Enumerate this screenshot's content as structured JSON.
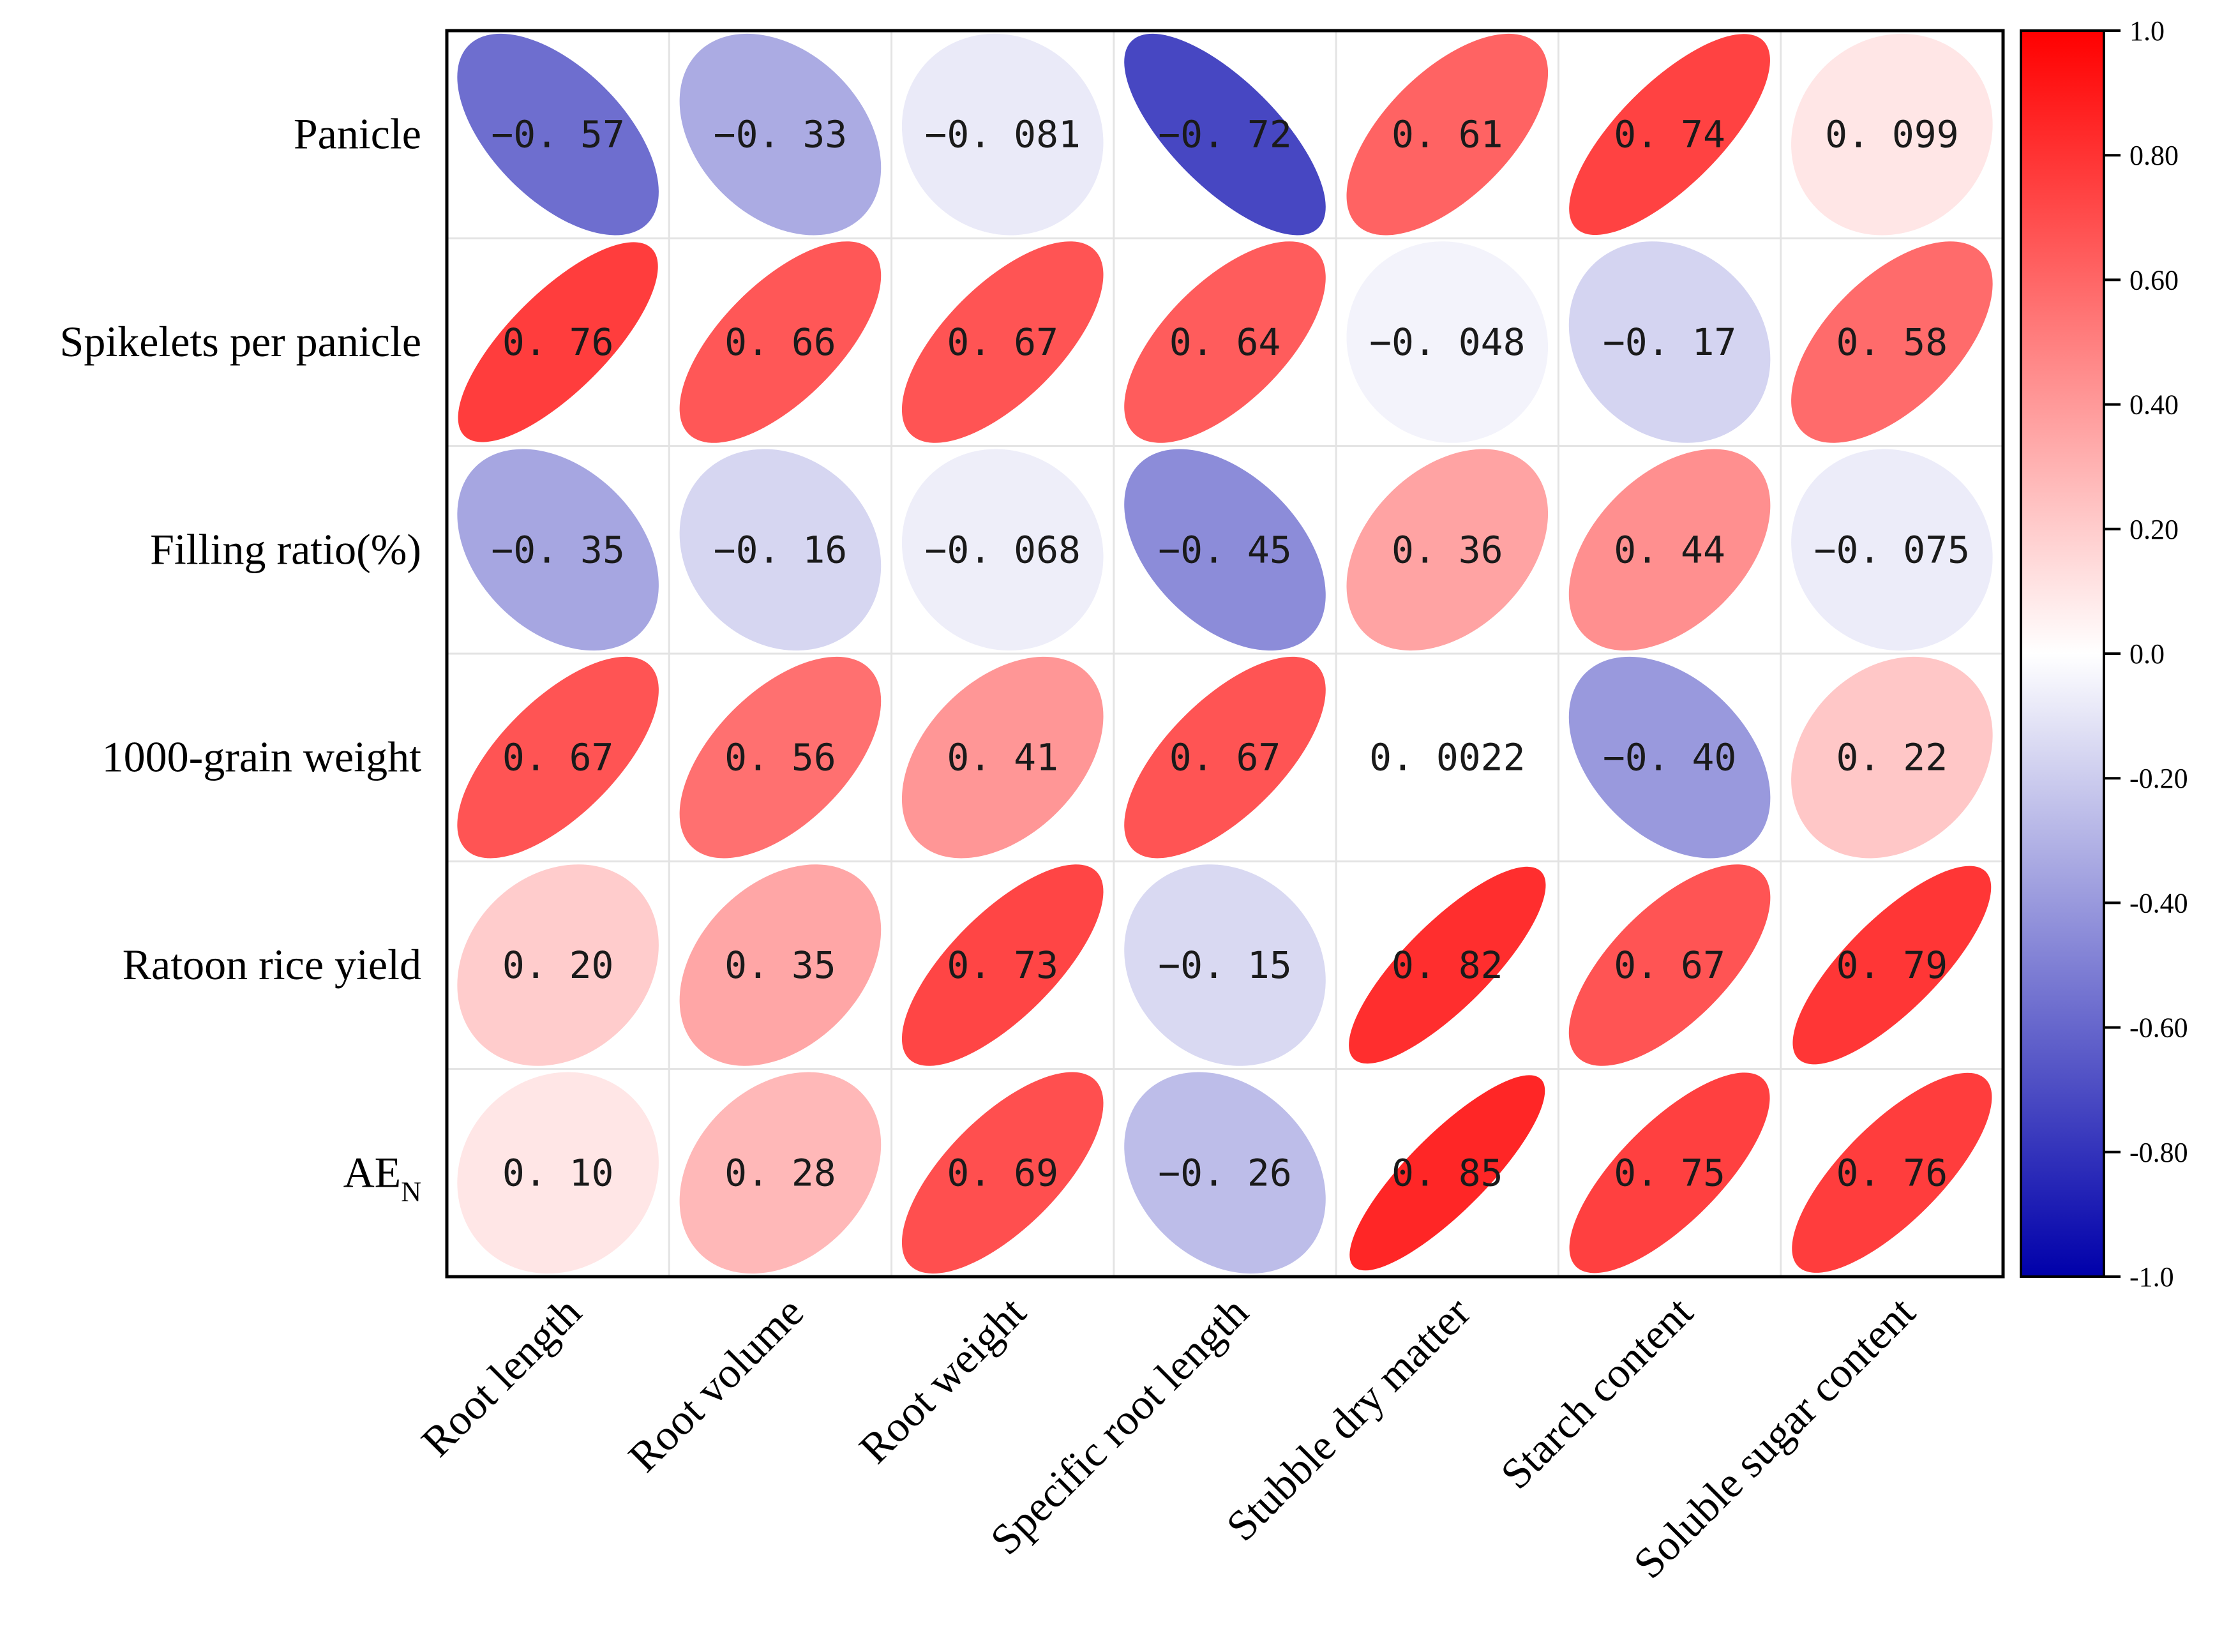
{
  "chart_data": {
    "type": "heatmap",
    "style": "correlation-ellipse",
    "rows": [
      "Panicle",
      "Spikelets per panicle",
      "Filling ratio(%)",
      "1000-grain weight",
      "Ratoon rice yield",
      "AE_N"
    ],
    "row_display": [
      {
        "main": "Panicle",
        "sub": ""
      },
      {
        "main": "Spikelets per panicle",
        "sub": ""
      },
      {
        "main": "Filling ratio(%)",
        "sub": ""
      },
      {
        "main": "1000-grain weight",
        "sub": ""
      },
      {
        "main": "Ratoon rice yield",
        "sub": ""
      },
      {
        "main": "AE",
        "sub": "N"
      }
    ],
    "columns": [
      "Root length",
      "Root volume",
      "Root weight",
      "Specific root length",
      "Stubble dry matter",
      "Starch content",
      "Soluble sugar content"
    ],
    "values": [
      [
        -0.57,
        -0.33,
        -0.081,
        -0.72,
        0.61,
        0.74,
        0.099
      ],
      [
        0.76,
        0.66,
        0.67,
        0.64,
        -0.048,
        -0.17,
        0.58
      ],
      [
        -0.35,
        -0.16,
        -0.068,
        -0.45,
        0.36,
        0.44,
        -0.075
      ],
      [
        0.67,
        0.56,
        0.41,
        0.67,
        0.0022,
        -0.4,
        0.22
      ],
      [
        0.2,
        0.35,
        0.73,
        -0.15,
        0.82,
        0.67,
        0.79
      ],
      [
        0.1,
        0.28,
        0.69,
        -0.26,
        0.85,
        0.75,
        0.76
      ]
    ],
    "value_labels": [
      [
        "−0. 57",
        "−0. 33",
        "−0. 081",
        "−0. 72",
        "0. 61",
        "0. 74",
        "0. 099"
      ],
      [
        "0. 76",
        "0. 66",
        "0. 67",
        "0. 64",
        "−0. 048",
        "−0. 17",
        "0. 58"
      ],
      [
        "−0. 35",
        "−0. 16",
        "−0. 068",
        "−0. 45",
        "0. 36",
        "0. 44",
        "−0. 075"
      ],
      [
        "0. 67",
        "0. 56",
        "0. 41",
        "0. 67",
        "0. 0022",
        "−0. 40",
        "0. 22"
      ],
      [
        "0. 20",
        "0. 35",
        "0. 73",
        "−0. 15",
        "0. 82",
        "0. 67",
        "0. 79"
      ],
      [
        "0. 10",
        "0. 28",
        "0. 69",
        "−0. 26",
        "0. 85",
        "0. 75",
        "0. 76"
      ]
    ],
    "colorbar": {
      "range": [
        -1.0,
        1.0
      ],
      "ticks": [
        "1.0",
        "0.80",
        "0.60",
        "0.40",
        "0.20",
        "0.0",
        "-0.20",
        "-0.40",
        "-0.60",
        "-0.80",
        "-1.0"
      ],
      "tick_values": [
        1.0,
        0.8,
        0.6,
        0.4,
        0.2,
        0.0,
        -0.2,
        -0.4,
        -0.6,
        -0.8,
        -1.0
      ],
      "colors": {
        "low": "#0000aa",
        "mid": "#ffffff",
        "high": "#ff0000"
      }
    },
    "title": "",
    "xlabel": "",
    "ylabel": ""
  }
}
